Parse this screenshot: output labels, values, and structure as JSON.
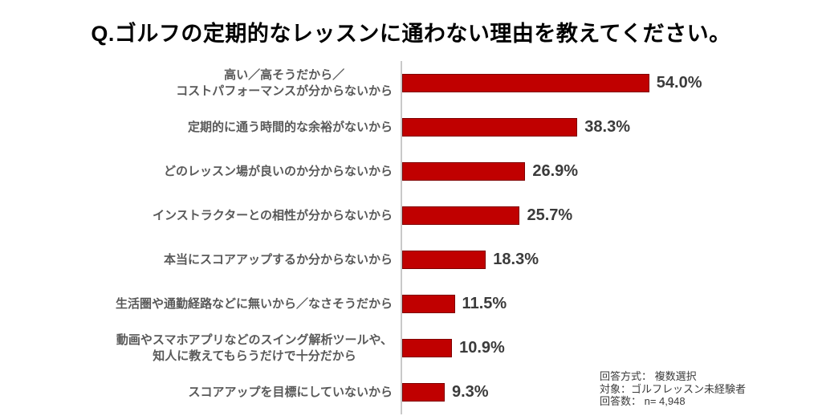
{
  "chart_data": {
    "type": "bar",
    "orientation": "horizontal",
    "title": "Q.ゴルフの定期的なレッスンに通わない理由を教えてください。",
    "categories": [
      "高い／高そうだから／\nコストパフォーマンスが分からないから",
      "定期的に通う時間的な余裕がないから",
      "どのレッスン場が良いのか分からないから",
      "インストラクターとの相性が分からないから",
      "本当にスコアアップするか分からないから",
      "生活圏や通勤経路などに無いから／なさそうだから",
      "動画やスマホアプリなどのスイング解析ツールや、\n知人に教えてもらうだけで十分だから",
      "スコアアップを目標にしていないから"
    ],
    "values": [
      54.0,
      38.3,
      26.9,
      25.7,
      18.3,
      11.5,
      10.9,
      9.3
    ],
    "value_labels": [
      "54.0%",
      "38.3%",
      "26.9%",
      "25.7%",
      "18.3%",
      "11.5%",
      "10.9%",
      "9.3%"
    ],
    "xlim": [
      0,
      90
    ],
    "bar_color": "#c00000",
    "bar_border_color": "#7f0000",
    "label_color": "#595959",
    "value_label_color": "#3b3b3b",
    "axis_line_color": "#c9c9c9",
    "grid": false,
    "legend": false
  },
  "notes": {
    "lines": [
      "回答方式： 複数選択",
      "対象：ゴルフレッスン未経験者",
      "回答数： n= 4,948"
    ]
  }
}
